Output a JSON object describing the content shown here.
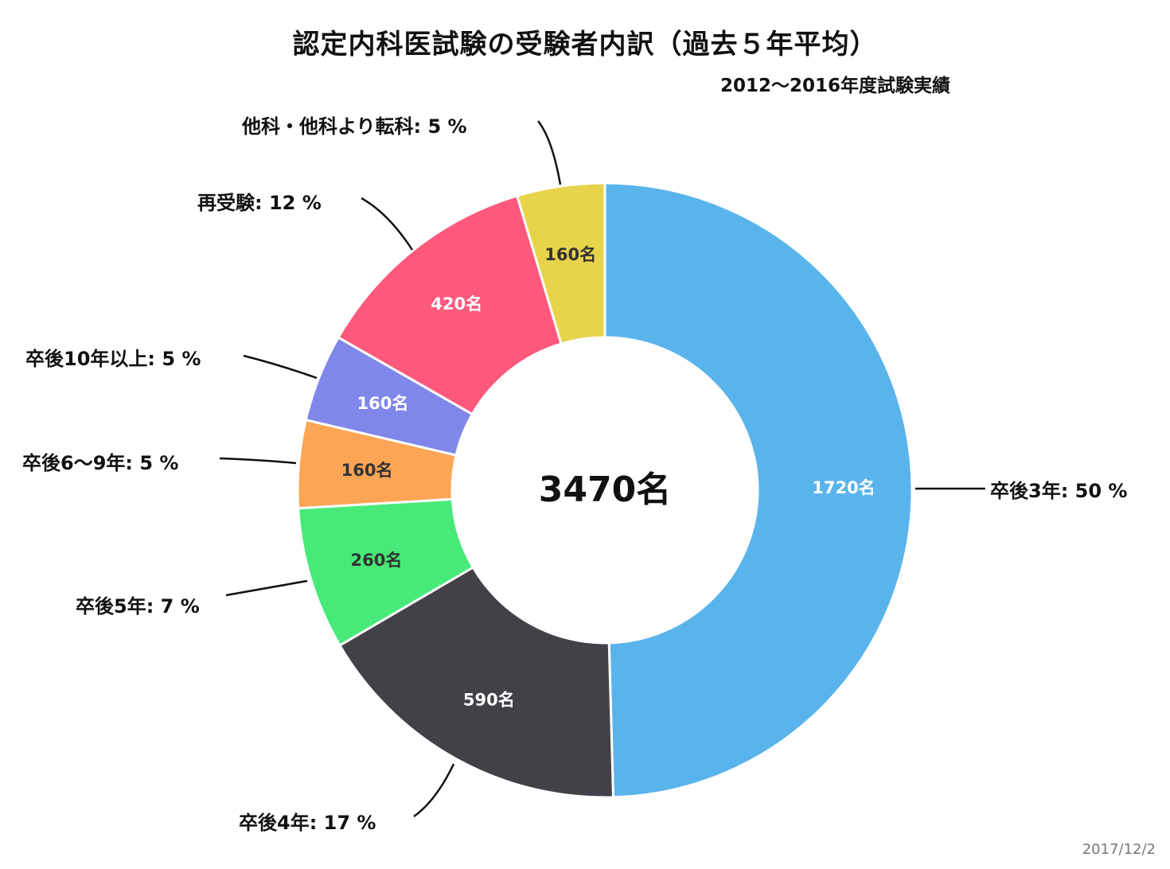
{
  "chart_data": {
    "type": "pie",
    "title": "認定内科医試験の受験者内訳（過去５年平均）",
    "subtitle": "2012～2016年度試験実績",
    "center_label": "3470名",
    "date": "2017/12/2",
    "series": [
      {
        "category": "卒後3年",
        "value": 1720,
        "value_label": "1720名",
        "percent": 50,
        "legend_label": "卒後3年: 50 %",
        "color": "#5AB4EC",
        "text_color": "#ffffff"
      },
      {
        "category": "卒後4年",
        "value": 590,
        "value_label": "590名",
        "percent": 17,
        "legend_label": "卒後4年: 17 %",
        "color": "#434147",
        "text_color": "#ffffff"
      },
      {
        "category": "卒後5年",
        "value": 260,
        "value_label": "260名",
        "percent": 7,
        "legend_label": "卒後5年: 7 %",
        "color": "#47EA78",
        "text_color": "#333333"
      },
      {
        "category": "卒後6～9年",
        "value": 160,
        "value_label": "160名",
        "percent": 5,
        "legend_label": "卒後6～9年: 5 %",
        "color": "#FBA555",
        "text_color": "#333333"
      },
      {
        "category": "卒後10年以上",
        "value": 160,
        "value_label": "160名",
        "percent": 5,
        "legend_label": "卒後10年以上: 5 %",
        "color": "#8087EA",
        "text_color": "#ffffff"
      },
      {
        "category": "再受験",
        "value": 420,
        "value_label": "420名",
        "percent": 12,
        "legend_label": "再受験: 12 %",
        "color": "#FE597C",
        "text_color": "#ffffff"
      },
      {
        "category": "他科・他科より転科",
        "value": 160,
        "value_label": "160名",
        "percent": 5,
        "legend_label": "他科・他科より転科: 5 %",
        "color": "#E8D44A",
        "text_color": "#333333"
      }
    ]
  }
}
